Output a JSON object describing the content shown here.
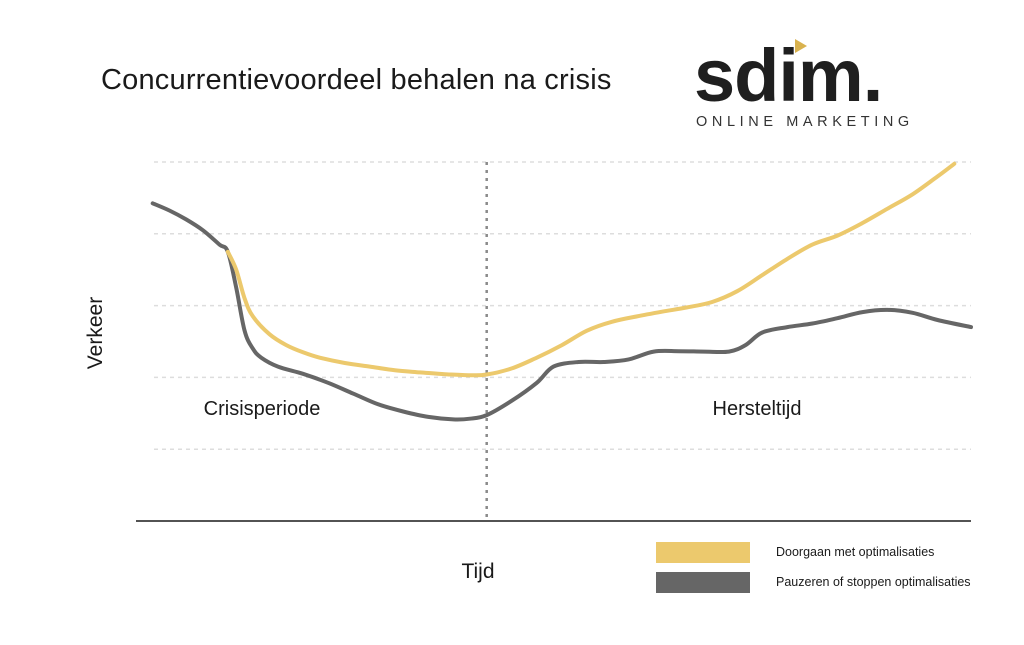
{
  "chart_data": {
    "type": "line",
    "title": "Concurrentievoordeel behalen na crisis",
    "xlabel": "Tijd",
    "ylabel": "Verkeer",
    "xlim": [
      0,
      100
    ],
    "ylim": [
      0,
      100
    ],
    "grid": true,
    "gridlines_y": [
      20,
      40,
      60,
      80,
      100
    ],
    "divider_x": 42,
    "annotations": [
      {
        "text": "Crisisperiode",
        "region": "left"
      },
      {
        "text": "Hersteltijd",
        "region": "right"
      }
    ],
    "legend_position": "bottom-right",
    "series": [
      {
        "name": "Doorgaan met optimalisaties",
        "color": "#ecc96d",
        "x": [
          11,
          12,
          13,
          14,
          16,
          18,
          20,
          22,
          25,
          28,
          31,
          34,
          37,
          40,
          42,
          45,
          48,
          51,
          54,
          57,
          60,
          63,
          66,
          69,
          72,
          75,
          78,
          81,
          84,
          87,
          90,
          93,
          96,
          98
        ],
        "y": [
          75,
          70,
          62,
          57,
          52,
          49,
          47,
          45.5,
          44,
          43,
          42,
          41.4,
          40.9,
          40.6,
          40.8,
          42.5,
          45.5,
          49,
          53,
          55.5,
          57,
          58.3,
          59.5,
          61,
          64,
          68.5,
          73,
          77,
          79.5,
          83,
          87,
          91,
          96,
          99.5
        ]
      },
      {
        "name": "Pauzeren of stoppen optimalisaties",
        "color": "#666666",
        "x": [
          2,
          4,
          6,
          8,
          10,
          11,
          12,
          13,
          14,
          15,
          17,
          20,
          23,
          26,
          29,
          32,
          35,
          38,
          40,
          42,
          45,
          48,
          50,
          53,
          56,
          59,
          62,
          65,
          68,
          71,
          73,
          75,
          78,
          81,
          84,
          87,
          90,
          93,
          96,
          100
        ],
        "y": [
          88.5,
          86.5,
          84,
          81,
          77,
          75,
          65,
          53,
          48,
          45.5,
          43,
          41,
          38.5,
          35.5,
          32.5,
          30.5,
          29,
          28.3,
          28.5,
          29.5,
          33.5,
          38.5,
          43,
          44.3,
          44.3,
          45,
          47.2,
          47.3,
          47.2,
          47.2,
          49,
          52.5,
          54,
          55,
          56.5,
          58.2,
          58.8,
          58,
          56,
          54
        ]
      }
    ]
  },
  "logo": {
    "word": "sdim.",
    "tagline": "ONLINE MARKETING"
  }
}
